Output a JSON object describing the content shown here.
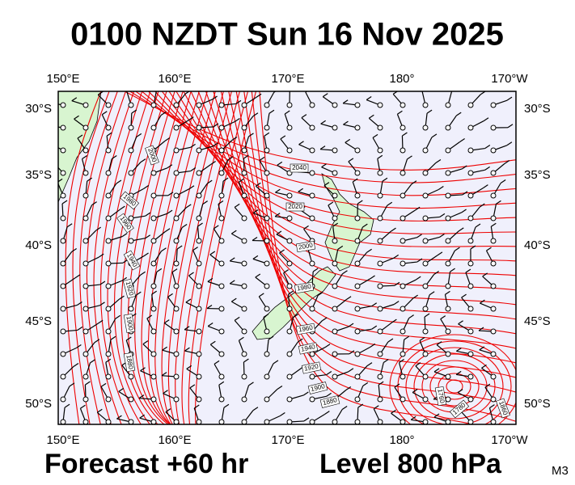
{
  "title": "0100 NZDT Sun 16 Nov 2025",
  "top_axis": [
    "150°E",
    "160°E",
    "170°E",
    "180°",
    "170°W"
  ],
  "bottom_axis": [
    "150°E",
    "160°E",
    "170°E",
    "180°",
    "170°W"
  ],
  "left_axis": [
    "30°S",
    "35°S",
    "40°S",
    "45°S",
    "50°S"
  ],
  "right_axis": [
    "30°S",
    "35°S",
    "40°S",
    "45°S",
    "50°S"
  ],
  "contour_labels": [
    "2040",
    "2020",
    "2000",
    "1980",
    "1960",
    "1940",
    "1920",
    "1900",
    "1880",
    "2000",
    "1980",
    "1960",
    "1940",
    "1920",
    "1900",
    "1880",
    "1760",
    "1780",
    "1860"
  ],
  "footer": {
    "forecast": "Forecast +60 hr",
    "level": "Level 800 hPa",
    "model": "M3"
  }
}
